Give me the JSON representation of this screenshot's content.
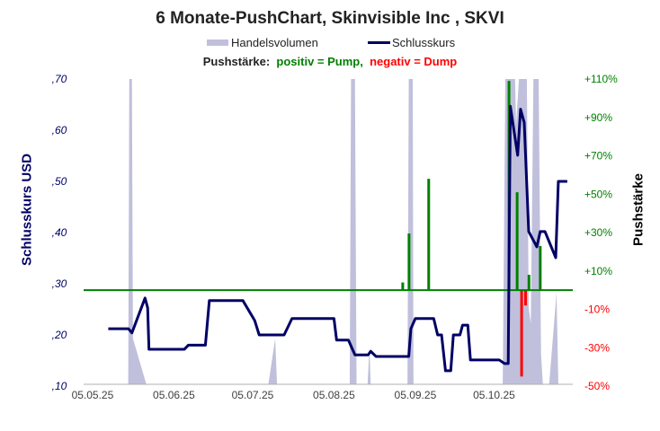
{
  "chart_data": {
    "type": "line",
    "title": "6 Monate-PushChart,  Skinvisible Inc , SKVI",
    "legend": {
      "volume": "Handelsvolumen",
      "price": "Schlusskurs",
      "placement": "top"
    },
    "push_legend": {
      "label": "Pushstärke:",
      "positive": "positiv = Pump,",
      "negative": "negativ = Dump"
    },
    "ylabel_left": "Schlusskurs USD",
    "ylabel_right": "Pushstärke",
    "ylim_left": [
      0.1,
      0.7
    ],
    "ylim_right": [
      -50,
      110
    ],
    "xlim_days": [
      -3.4,
      183
    ],
    "x_ticks": [
      {
        "day": 0,
        "label": "05.05.25"
      },
      {
        "day": 31,
        "label": "05.06.25"
      },
      {
        "day": 61,
        "label": "05.07.25"
      },
      {
        "day": 92,
        "label": "05.08.25"
      },
      {
        "day": 123,
        "label": "05.09.25"
      },
      {
        "day": 153,
        "label": "05.10.25"
      }
    ],
    "y_ticks_left": [
      {
        "v": 0.1,
        "label": ",10"
      },
      {
        "v": 0.2,
        "label": ",20"
      },
      {
        "v": 0.3,
        "label": ",30"
      },
      {
        "v": 0.4,
        "label": ",40"
      },
      {
        "v": 0.5,
        "label": ",50"
      },
      {
        "v": 0.6,
        "label": ",60"
      },
      {
        "v": 0.7,
        "label": ",70"
      }
    ],
    "y_ticks_right": [
      {
        "v": 110,
        "label": "+110%"
      },
      {
        "v": 90,
        "label": "+90%"
      },
      {
        "v": 70,
        "label": "+70%"
      },
      {
        "v": 50,
        "label": "+50%"
      },
      {
        "v": 30,
        "label": "+30%"
      },
      {
        "v": 10,
        "label": "+10%"
      },
      {
        "v": -10,
        "label": "-10%"
      },
      {
        "v": -30,
        "label": "-30%"
      },
      {
        "v": -50,
        "label": "-50%"
      }
    ],
    "price_series": [
      [
        6,
        0.212
      ],
      [
        13.7,
        0.212
      ],
      [
        15,
        0.204
      ],
      [
        20,
        0.272
      ],
      [
        21,
        0.253
      ],
      [
        21.5,
        0.172
      ],
      [
        35,
        0.172
      ],
      [
        36.5,
        0.18
      ],
      [
        43,
        0.18
      ],
      [
        44.5,
        0.267
      ],
      [
        57.3,
        0.267
      ],
      [
        61.8,
        0.228
      ],
      [
        63.5,
        0.2
      ],
      [
        73,
        0.2
      ],
      [
        76,
        0.232
      ],
      [
        92,
        0.232
      ],
      [
        93,
        0.19
      ],
      [
        97.5,
        0.19
      ],
      [
        100,
        0.161
      ],
      [
        105,
        0.161
      ],
      [
        106,
        0.168
      ],
      [
        108,
        0.158
      ],
      [
        120.5,
        0.158
      ],
      [
        121.3,
        0.212
      ],
      [
        123,
        0.232
      ],
      [
        130,
        0.232
      ],
      [
        131.5,
        0.2
      ],
      [
        133,
        0.2
      ],
      [
        134.5,
        0.13
      ],
      [
        136.5,
        0.13
      ],
      [
        137.5,
        0.2
      ],
      [
        140,
        0.2
      ],
      [
        141,
        0.219
      ],
      [
        143,
        0.219
      ],
      [
        144,
        0.151
      ],
      [
        155,
        0.151
      ],
      [
        157,
        0.144
      ],
      [
        158.4,
        0.144
      ],
      [
        159.2,
        0.647
      ],
      [
        162,
        0.551
      ],
      [
        163.1,
        0.641
      ],
      [
        164.5,
        0.615
      ],
      [
        166.2,
        0.402
      ],
      [
        169.3,
        0.372
      ],
      [
        170.6,
        0.402
      ],
      [
        172.4,
        0.402
      ],
      [
        176.5,
        0.351
      ],
      [
        177.5,
        0.5
      ],
      [
        180.9,
        0.5
      ]
    ],
    "volume_relative": [
      [
        13.6,
        0
      ],
      [
        14,
        1
      ],
      [
        15,
        1
      ],
      [
        15.4,
        0.15
      ],
      [
        20.5,
        0
      ],
      [
        67,
        0
      ],
      [
        69.6,
        0.15
      ],
      [
        70.3,
        0
      ],
      [
        98,
        0
      ],
      [
        98.5,
        1
      ],
      [
        100,
        1
      ],
      [
        100.6,
        0
      ],
      [
        104.8,
        0
      ],
      [
        105.5,
        0.12
      ],
      [
        106,
        0
      ],
      [
        120,
        0
      ],
      [
        120.5,
        1
      ],
      [
        122,
        1
      ],
      [
        122.3,
        0
      ],
      [
        156.3,
        0
      ],
      [
        157.3,
        1
      ],
      [
        161,
        1
      ],
      [
        161.4,
        0.85
      ],
      [
        162.5,
        1
      ],
      [
        165.5,
        1
      ],
      [
        166.2,
        0.25
      ],
      [
        167,
        0.2
      ],
      [
        168,
        1
      ],
      [
        170,
        1
      ],
      [
        170.9,
        0.1
      ],
      [
        171.6,
        0
      ],
      [
        174,
        0
      ],
      [
        176.8,
        0.3
      ],
      [
        177.5,
        0
      ]
    ],
    "push_bars": [
      [
        118.2,
        4
      ],
      [
        120.6,
        29.5
      ],
      [
        128.1,
        58
      ],
      [
        158.7,
        109
      ],
      [
        161.8,
        51
      ],
      [
        163.5,
        -45
      ],
      [
        165,
        -8
      ],
      [
        166.3,
        8
      ],
      [
        170.6,
        23
      ]
    ],
    "colors": {
      "price": "#000066",
      "volume": "#c0c0dc",
      "positive": "#008000",
      "negative": "#ff0000",
      "zero_line": "#008000"
    }
  }
}
